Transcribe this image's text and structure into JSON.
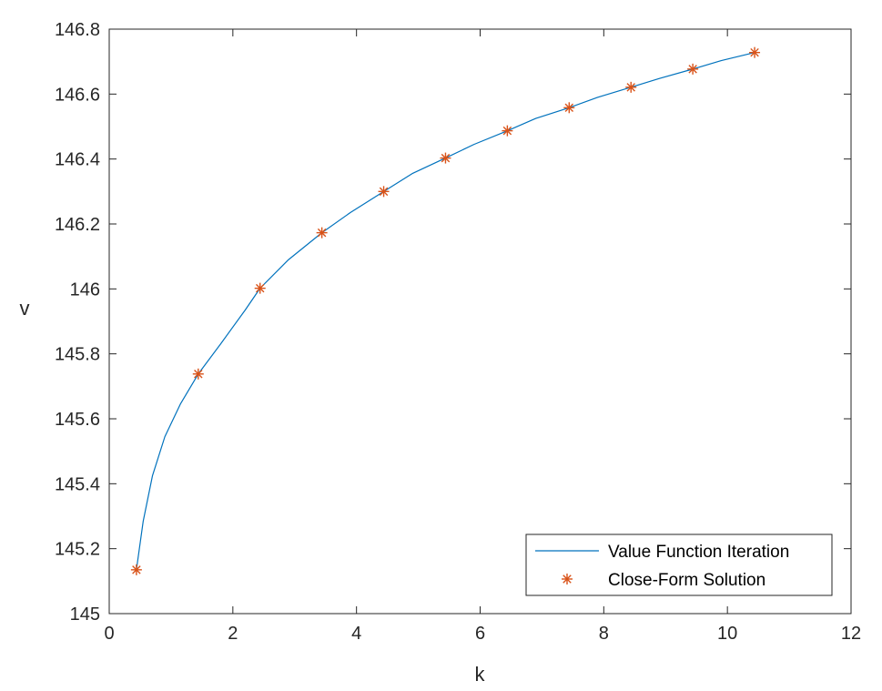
{
  "chart_data": {
    "type": "line",
    "title": "",
    "xlabel": "k",
    "ylabel": "v",
    "xlim": [
      0,
      12
    ],
    "ylim": [
      145,
      146.8
    ],
    "x_ticks": [
      0,
      2,
      4,
      6,
      8,
      10,
      12
    ],
    "y_ticks": [
      145,
      145.2,
      145.4,
      145.6,
      145.8,
      146,
      146.2,
      146.4,
      146.6,
      146.8
    ],
    "x_tick_labels": [
      "0",
      "2",
      "4",
      "6",
      "8",
      "10",
      "12"
    ],
    "y_tick_labels": [
      "145",
      "145.2",
      "145.4",
      "145.6",
      "145.8",
      "146",
      "146.2",
      "146.4",
      "146.6",
      "146.8"
    ],
    "grid": false,
    "legend_position": "bottom-right",
    "series": [
      {
        "name": "Value Function Iteration",
        "style": "line",
        "color": "#0072BD",
        "x": [
          0.44,
          0.55,
          0.7,
          0.9,
          1.15,
          1.44,
          1.8,
          2.2,
          2.44,
          2.9,
          3.44,
          3.9,
          4.44,
          4.9,
          5.44,
          5.9,
          6.44,
          6.9,
          7.44,
          7.9,
          8.44,
          8.9,
          9.44,
          9.9,
          10.44
        ],
        "y": [
          145.135,
          145.285,
          145.425,
          145.545,
          145.645,
          145.738,
          145.83,
          145.935,
          146.002,
          146.09,
          146.173,
          146.235,
          146.3,
          146.355,
          146.403,
          146.445,
          146.487,
          146.525,
          146.558,
          146.59,
          146.621,
          146.648,
          146.677,
          146.703,
          146.728
        ]
      },
      {
        "name": "Close-Form Solution",
        "style": "marker",
        "marker": "asterisk",
        "color": "#D95319",
        "x": [
          0.44,
          1.44,
          2.44,
          3.44,
          4.44,
          5.44,
          6.44,
          7.44,
          8.44,
          9.44,
          10.44
        ],
        "y": [
          145.135,
          145.738,
          146.002,
          146.173,
          146.3,
          146.403,
          146.487,
          146.558,
          146.621,
          146.677,
          146.728
        ]
      }
    ]
  }
}
